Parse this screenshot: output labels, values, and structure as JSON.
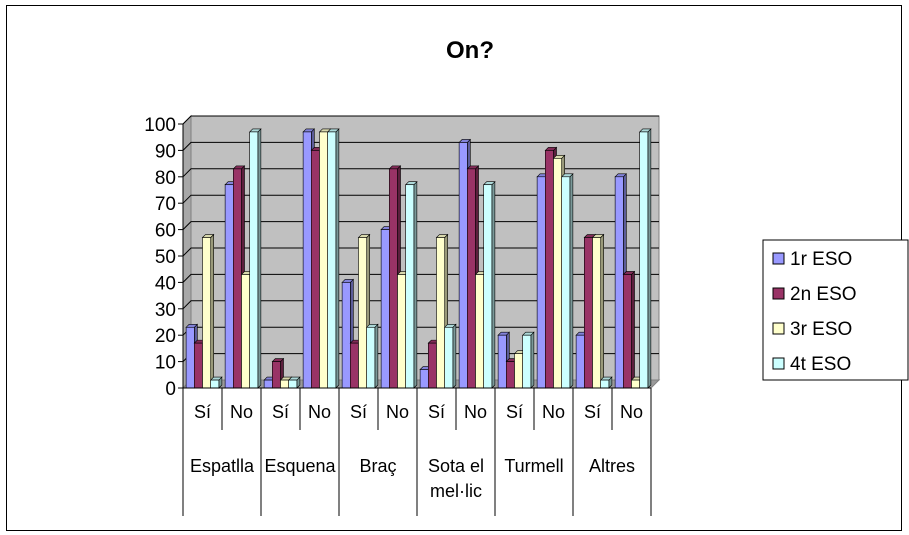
{
  "chart_data": {
    "type": "bar",
    "title": "On?",
    "ylim": [
      0,
      100
    ],
    "yticks": [
      0,
      10,
      20,
      30,
      40,
      50,
      60,
      70,
      80,
      90,
      100
    ],
    "groups": [
      "Espatlla",
      "Esquena",
      "Braç",
      "Sota el mel·lic",
      "Turmell",
      "Altres"
    ],
    "group_label_lines": [
      [
        "Espatlla"
      ],
      [
        "Esquena"
      ],
      [
        "Braç"
      ],
      [
        "Sota el",
        "mel·lic"
      ],
      [
        "Turmell"
      ],
      [
        "Altres"
      ]
    ],
    "subcategories": [
      "Sí",
      "No"
    ],
    "series": [
      {
        "name": "1r ESO",
        "color": "#9999ff",
        "values": [
          23,
          77,
          3,
          97,
          40,
          60,
          7,
          93,
          20,
          80,
          20,
          80
        ]
      },
      {
        "name": "2n ESO",
        "color": "#993366",
        "values": [
          17,
          83,
          10,
          90,
          17,
          83,
          17,
          83,
          10,
          90,
          57,
          43
        ]
      },
      {
        "name": "3r ESO",
        "color": "#ffffcc",
        "values": [
          57,
          43,
          3,
          97,
          57,
          43,
          57,
          43,
          13,
          87,
          57,
          3
        ]
      },
      {
        "name": "4t ESO",
        "color": "#ccffff",
        "values": [
          3,
          97,
          3,
          97,
          23,
          77,
          23,
          77,
          20,
          80,
          3,
          97
        ]
      }
    ],
    "grid": true,
    "legend_position": "right"
  }
}
